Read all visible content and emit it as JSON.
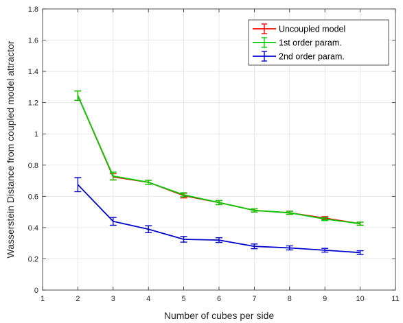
{
  "chart_data": {
    "type": "line",
    "title": "",
    "xlabel": "Number of cubes per side",
    "ylabel": "Wasserstein Distance from coupled model attractor",
    "xlim": [
      1,
      11
    ],
    "ylim": [
      0,
      1.8
    ],
    "xticks": [
      1,
      2,
      3,
      4,
      5,
      6,
      7,
      8,
      9,
      10,
      11
    ],
    "yticks": [
      0,
      0.2,
      0.4,
      0.6,
      0.8,
      1,
      1.2,
      1.4,
      1.6,
      1.8
    ],
    "ytick_labels": [
      "0",
      "0.2",
      "0.4",
      "0.6",
      "0.8",
      "1",
      "1.2",
      "1.4",
      "1.6",
      "1.8"
    ],
    "grid": true,
    "legend_position": "top-right",
    "x": [
      2,
      3,
      4,
      5,
      6,
      7,
      8,
      9,
      10
    ],
    "series": [
      {
        "name": "Uncoupled model",
        "color": "#ff0000",
        "values": [
          1.245,
          0.725,
          0.69,
          0.605,
          0.56,
          0.51,
          0.495,
          0.46,
          0.425
        ],
        "errors": [
          0.03,
          0.02,
          0.013,
          0.015,
          0.013,
          0.01,
          0.01,
          0.01,
          0.01
        ]
      },
      {
        "name": "1st order param.",
        "color": "#00cc00",
        "values": [
          1.245,
          0.73,
          0.69,
          0.61,
          0.56,
          0.51,
          0.495,
          0.455,
          0.425
        ],
        "errors": [
          0.03,
          0.025,
          0.013,
          0.013,
          0.013,
          0.01,
          0.01,
          0.01,
          0.01
        ]
      },
      {
        "name": "2nd order param.",
        "color": "#0000cc",
        "values": [
          0.675,
          0.44,
          0.39,
          0.325,
          0.32,
          0.28,
          0.27,
          0.255,
          0.24
        ],
        "errors": [
          0.045,
          0.025,
          0.022,
          0.018,
          0.015,
          0.015,
          0.013,
          0.012,
          0.012
        ]
      }
    ]
  }
}
